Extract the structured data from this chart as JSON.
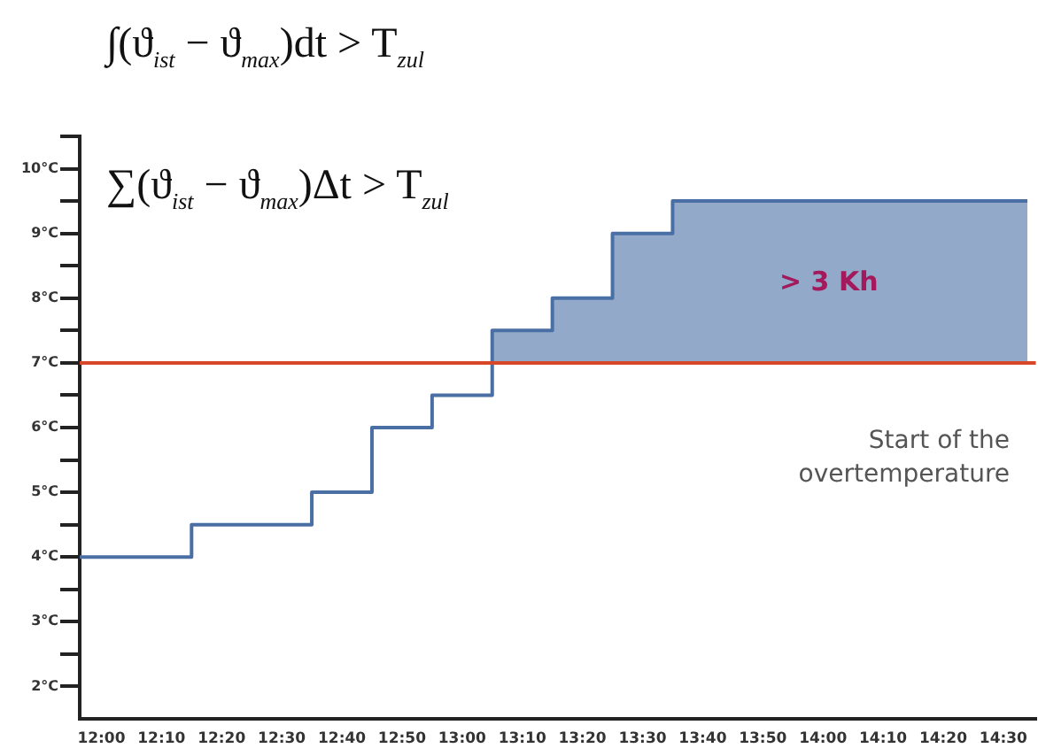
{
  "chart_data": {
    "type": "step",
    "x": [
      11.94,
      12.25,
      12.5833,
      12.75,
      12.9167,
      13.0833,
      13.25,
      13.4167,
      13.5833,
      14.5667
    ],
    "series": [
      {
        "color": "#4a6fa5",
        "values": [
          4,
          4.5,
          5,
          6,
          6.5,
          7.5,
          8,
          9,
          9.5,
          9.5
        ]
      }
    ],
    "xlim": [
      11.94,
      14.59
    ],
    "xticks": [
      {
        "value": 12,
        "label": "12:00"
      },
      {
        "value": 12.1667,
        "label": "12:10"
      },
      {
        "value": 12.3333,
        "label": "12:20"
      },
      {
        "value": 12.5,
        "label": "12:30"
      },
      {
        "value": 12.6667,
        "label": "12:40"
      },
      {
        "value": 12.8333,
        "label": "12:50"
      },
      {
        "value": 13,
        "label": "13:00"
      },
      {
        "value": 13.1667,
        "label": "13:10"
      },
      {
        "value": 13.3333,
        "label": "13:20"
      },
      {
        "value": 13.5,
        "label": "13:30"
      },
      {
        "value": 13.6667,
        "label": "13:40"
      },
      {
        "value": 13.8333,
        "label": "13:50"
      },
      {
        "value": 14,
        "label": "14:00"
      },
      {
        "value": 14.1667,
        "label": "14:10"
      },
      {
        "value": 14.3333,
        "label": "14:20"
      },
      {
        "value": 14.5,
        "label": "14:30"
      }
    ],
    "ylim": [
      1.5,
      10.5
    ],
    "yticks": [
      {
        "value": 2,
        "label": "2°C"
      },
      {
        "value": 2.5,
        "label": null
      },
      {
        "value": 3,
        "label": "3°C"
      },
      {
        "value": 3.5,
        "label": null
      },
      {
        "value": 4,
        "label": "4°C"
      },
      {
        "value": 4.5,
        "label": null
      },
      {
        "value": 5,
        "label": "5°C"
      },
      {
        "value": 5.5,
        "label": null
      },
      {
        "value": 6,
        "label": "6°C"
      },
      {
        "value": 6.5,
        "label": null
      },
      {
        "value": 7,
        "label": "7°C"
      },
      {
        "value": 7.5,
        "label": null
      },
      {
        "value": 8,
        "label": "8°C"
      },
      {
        "value": 8.5,
        "label": null
      },
      {
        "value": 9,
        "label": "9°C"
      },
      {
        "value": 9.5,
        "label": null
      },
      {
        "value": 10,
        "label": "10°C"
      },
      {
        "value": 10.5,
        "label": null
      }
    ],
    "ref_lines": [
      {
        "axis": "y",
        "value": 7,
        "label": null,
        "color": "#d9472b"
      }
    ],
    "annotations": [
      "∫(ϑ$_{ist}$ − ϑ$_{max}$)dt > T$_{zul}$",
      "∑(ϑ$_{ist}$ − ϑ$_{max}$)Δt > T$_{zul}$",
      "> 3 Kh",
      "Start of the overtemperature"
    ],
    "grid": false,
    "legend": false,
    "marker": "none",
    "line_style": "solid"
  }
}
